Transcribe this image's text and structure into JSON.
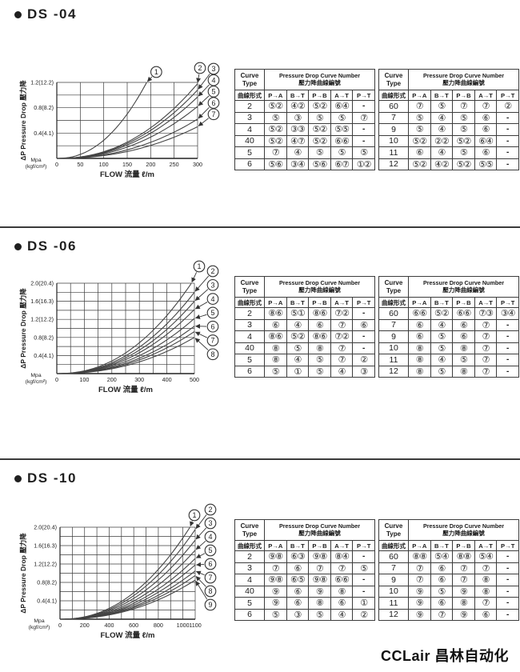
{
  "page": {
    "footer_logo": "CCLair 昌林自动化"
  },
  "table_template": {
    "curve_type_line1": "Curve",
    "curve_type_line2": "Type",
    "curve_type_cn": "曲線形式",
    "header_en": "Pressure Drop Curve Number",
    "header_cn": "壓力降曲線編號",
    "columns": [
      "P→A",
      "B→T",
      "P→B",
      "A→T",
      "P→T"
    ]
  },
  "sections": [
    {
      "id": "ds-04",
      "title": "DS -04",
      "chart_data": {
        "type": "line",
        "xlabel": "FLOW 流量 ℓ/m",
        "ylabel": "ΔP Pressure Drop 壓力降",
        "y_unit": [
          "Mpa",
          "(kgf/cm²)"
        ],
        "xlim": [
          0,
          300
        ],
        "ylim": [
          0,
          1.2
        ],
        "x_gridstep": 50,
        "y_gridstep": 0.2,
        "xticks": [
          0,
          50,
          100,
          150,
          200,
          250,
          300
        ],
        "yticks": [
          {
            "v": 1.2,
            "label": "1.2(12.2)"
          },
          {
            "v": 0.8,
            "label": "0.8(8.2)"
          },
          {
            "v": 0.4,
            "label": "0.4(4.1)"
          }
        ],
        "grid": true,
        "curves": [
          {
            "n": "1",
            "x_end": 200,
            "y_end": 1.32
          },
          {
            "n": "2",
            "x_end": 300,
            "y_end": 1.18
          },
          {
            "n": "3",
            "x_end": 300,
            "y_end": 1.08
          },
          {
            "n": "4",
            "x_end": 300,
            "y_end": 0.97
          },
          {
            "n": "5",
            "x_end": 300,
            "y_end": 0.82
          },
          {
            "n": "6",
            "x_end": 300,
            "y_end": 0.62
          },
          {
            "n": "7",
            "x_end": 300,
            "y_end": 0.5
          }
        ]
      },
      "tables": [
        {
          "rows": [
            [
              "2",
              "⑤②",
              "④②",
              "⑤②",
              "⑥④",
              "-"
            ],
            [
              "3",
              "⑤",
              "③",
              "⑤",
              "⑤",
              "⑦"
            ],
            [
              "4",
              "⑤②",
              "③③",
              "⑤②",
              "⑤⑤",
              "-"
            ],
            [
              "40",
              "⑤②",
              "④⑦",
              "⑤②",
              "⑥⑥",
              "-"
            ],
            [
              "5",
              "⑦",
              "④",
              "⑤",
              "⑤",
              "⑤"
            ],
            [
              "6",
              "⑤⑥",
              "③④",
              "⑤⑥",
              "⑥⑦",
              "①②"
            ]
          ]
        },
        {
          "rows": [
            [
              "60",
              "⑦",
              "⑤",
              "⑦",
              "⑦",
              "②"
            ],
            [
              "7",
              "⑤",
              "④",
              "⑤",
              "⑥",
              "-"
            ],
            [
              "9",
              "⑤",
              "④",
              "⑤",
              "⑥",
              "-"
            ],
            [
              "10",
              "⑤②",
              "②②",
              "⑤②",
              "⑥④",
              "-"
            ],
            [
              "11",
              "⑥",
              "④",
              "⑤",
              "⑥",
              "-"
            ],
            [
              "12",
              "⑤②",
              "④②",
              "⑤②",
              "⑤⑤",
              "-"
            ]
          ]
        }
      ]
    },
    {
      "id": "ds-06",
      "title": "DS -06",
      "chart_data": {
        "type": "line",
        "xlabel": "FLOW 流量 ℓ/m",
        "ylabel": "ΔP Pressure Drop 壓力降",
        "y_unit": [
          "Mpa",
          "(kgf/cm²)"
        ],
        "xlim": [
          0,
          500
        ],
        "ylim": [
          0,
          2.0
        ],
        "x_gridstep": 50,
        "y_gridstep": 0.2,
        "xticks": [
          0,
          100,
          200,
          300,
          400,
          500
        ],
        "yticks": [
          {
            "v": 2.0,
            "label": "2.0(20.4)"
          },
          {
            "v": 1.6,
            "label": "1.6(16.3)"
          },
          {
            "v": 1.2,
            "label": "1.2(12.2)"
          },
          {
            "v": 0.8,
            "label": "0.8(8.2)"
          },
          {
            "v": 0.4,
            "label": "0.4(4.1)"
          }
        ],
        "grid": true,
        "curves": [
          {
            "n": "1",
            "x_end": 500,
            "y_end": 2.1
          },
          {
            "n": "2",
            "x_end": 500,
            "y_end": 1.8
          },
          {
            "n": "3",
            "x_end": 500,
            "y_end": 1.6
          },
          {
            "n": "4",
            "x_end": 500,
            "y_end": 1.42
          },
          {
            "n": "5",
            "x_end": 500,
            "y_end": 1.22
          },
          {
            "n": "6",
            "x_end": 500,
            "y_end": 1.05
          },
          {
            "n": "7",
            "x_end": 500,
            "y_end": 0.93
          },
          {
            "n": "8",
            "x_end": 500,
            "y_end": 0.8
          }
        ]
      },
      "tables": [
        {
          "rows": [
            [
              "2",
              "⑧⑥",
              "⑤①",
              "⑧⑥",
              "⑦②",
              "-"
            ],
            [
              "3",
              "⑥",
              "④",
              "⑥",
              "⑦",
              "⑥"
            ],
            [
              "4",
              "⑧⑥",
              "⑤②",
              "⑧⑥",
              "⑦②",
              "-"
            ],
            [
              "40",
              "⑧",
              "⑤",
              "⑧",
              "⑦",
              "-"
            ],
            [
              "5",
              "⑧",
              "④",
              "⑤",
              "⑦",
              "②"
            ],
            [
              "6",
              "⑤",
              "①",
              "⑤",
              "④",
              "③"
            ]
          ]
        },
        {
          "rows": [
            [
              "60",
              "⑥⑥",
              "⑤②",
              "⑥⑥",
              "⑦③",
              "③④"
            ],
            [
              "7",
              "⑥",
              "④",
              "⑥",
              "⑦",
              "-"
            ],
            [
              "9",
              "⑥",
              "⑤",
              "⑥",
              "⑦",
              "-"
            ],
            [
              "10",
              "⑧",
              "⑤",
              "⑧",
              "⑦",
              "-"
            ],
            [
              "11",
              "⑧",
              "④",
              "⑤",
              "⑦",
              "-"
            ],
            [
              "12",
              "⑧",
              "⑤",
              "⑧",
              "⑦",
              "-"
            ]
          ]
        }
      ]
    },
    {
      "id": "ds-10",
      "title": "DS -10",
      "chart_data": {
        "type": "line",
        "xlabel": "FLOW 流量 ℓ/m",
        "ylabel": "ΔP Pressure Drop 壓力降",
        "y_unit": [
          "Mpa",
          "(kgf/cm²)"
        ],
        "xlim": [
          0,
          1100
        ],
        "ylim": [
          0,
          2.0
        ],
        "x_gridstep": 100,
        "y_gridstep": 0.2,
        "xticks": [
          0,
          200,
          400,
          600,
          800,
          1000,
          1100
        ],
        "yticks": [
          {
            "v": 2.0,
            "label": "2.0(20.4)"
          },
          {
            "v": 1.6,
            "label": "1.6(16.3)"
          },
          {
            "v": 1.2,
            "label": "1.2(12.2)"
          },
          {
            "v": 0.8,
            "label": "0.8(8.2)"
          },
          {
            "v": 0.4,
            "label": "0.4(4.1)"
          }
        ],
        "grid": true,
        "curves": [
          {
            "n": "1",
            "x_end": 1100,
            "y_end": 2.18
          },
          {
            "n": "2",
            "x_end": 1100,
            "y_end": 1.95
          },
          {
            "n": "3",
            "x_end": 1100,
            "y_end": 1.72
          },
          {
            "n": "4",
            "x_end": 1100,
            "y_end": 1.5
          },
          {
            "n": "5",
            "x_end": 1100,
            "y_end": 1.32
          },
          {
            "n": "6",
            "x_end": 1100,
            "y_end": 1.18
          },
          {
            "n": "7",
            "x_end": 1100,
            "y_end": 1.05
          },
          {
            "n": "8",
            "x_end": 1100,
            "y_end": 0.95
          },
          {
            "n": "9",
            "x_end": 1100,
            "y_end": 0.85
          }
        ]
      },
      "tables": [
        {
          "rows": [
            [
              "2",
              "⑨⑧",
              "⑥③",
              "⑨⑧",
              "⑧④",
              "-"
            ],
            [
              "3",
              "⑦",
              "⑥",
              "⑦",
              "⑦",
              "⑤"
            ],
            [
              "4",
              "⑨⑧",
              "⑥⑤",
              "⑨⑧",
              "⑥⑥",
              "-"
            ],
            [
              "40",
              "⑨",
              "⑥",
              "⑨",
              "⑧",
              "-"
            ],
            [
              "5",
              "⑨",
              "⑥",
              "⑧",
              "⑥",
              "①"
            ],
            [
              "6",
              "⑤",
              "③",
              "⑤",
              "④",
              "②"
            ]
          ]
        },
        {
          "rows": [
            [
              "60",
              "⑧⑧",
              "⑤④",
              "⑧⑧",
              "⑤④",
              "-"
            ],
            [
              "7",
              "⑦",
              "⑥",
              "⑦",
              "⑦",
              "-"
            ],
            [
              "9",
              "⑦",
              "⑥",
              "⑦",
              "⑧",
              "-"
            ],
            [
              "10",
              "⑨",
              "⑤",
              "⑨",
              "⑧",
              "-"
            ],
            [
              "11",
              "⑨",
              "⑥",
              "⑧",
              "⑦",
              "-"
            ],
            [
              "12",
              "⑨",
              "⑦",
              "⑨",
              "⑥",
              "-"
            ]
          ]
        }
      ]
    }
  ]
}
